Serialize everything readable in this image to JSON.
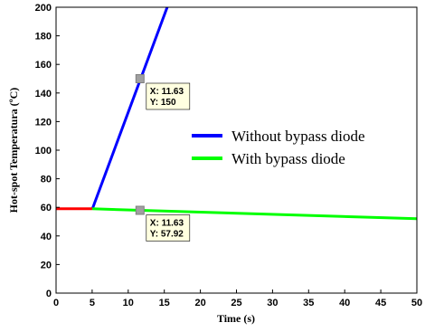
{
  "chart_data": {
    "type": "line",
    "xlabel": "Time (s)",
    "ylabel": "Hot-spot Temperatura (ºC)",
    "xlim": [
      0,
      50
    ],
    "ylim": [
      0,
      200
    ],
    "xticks": [
      0,
      5,
      10,
      15,
      20,
      25,
      30,
      35,
      40,
      45,
      50
    ],
    "yticks": [
      0,
      20,
      40,
      60,
      80,
      100,
      120,
      140,
      160,
      180,
      200
    ],
    "grid": false,
    "legend_position": "center-right",
    "series": [
      {
        "name": "Without bypass diode",
        "color": "#0000ff",
        "x": [
          5,
          15.4
        ],
        "y": [
          58.5,
          200
        ]
      },
      {
        "name": "With bypass diode",
        "color": "#00ff00",
        "x": [
          5,
          50
        ],
        "y": [
          59,
          52
        ]
      },
      {
        "color": "#ff0000",
        "x": [
          0,
          5
        ],
        "y": [
          59,
          59
        ]
      }
    ],
    "datatips": [
      {
        "x": 11.63,
        "y": 150,
        "lines": [
          "X: 11.63",
          "Y: 150"
        ]
      },
      {
        "x": 11.63,
        "y": 57.92,
        "lines": [
          "X: 11.63",
          "Y: 57.92"
        ]
      }
    ]
  }
}
